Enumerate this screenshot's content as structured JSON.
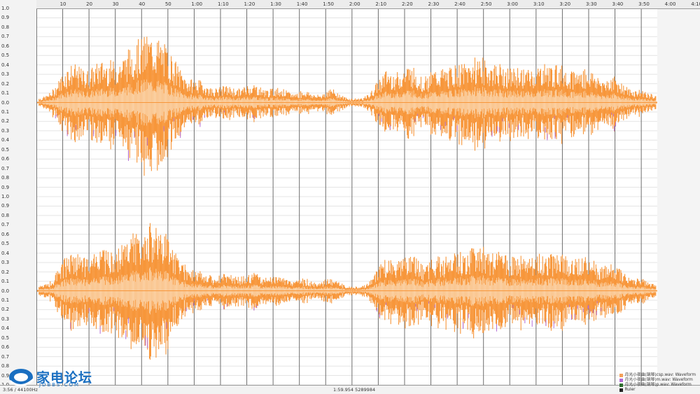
{
  "amplitude_axis": {
    "labels": [
      "1.0",
      "0.9",
      "0.8",
      "0.7",
      "0.6",
      "0.5",
      "0.4",
      "0.3",
      "0.2",
      "0.1",
      "0.0",
      "0.1",
      "0.2",
      "0.3",
      "0.4",
      "0.5",
      "0.6",
      "0.7",
      "0.8",
      "0.9",
      "1.0",
      "0.9",
      "0.8",
      "0.7",
      "0.6",
      "0.5",
      "0.4",
      "0.3",
      "0.2",
      "0.1",
      "0.0",
      "0.1",
      "0.2",
      "0.3",
      "0.4",
      "0.5",
      "0.6",
      "0.7",
      "0.8",
      "0.9",
      "1.0"
    ]
  },
  "time_ruler": {
    "labels": [
      "10",
      "20",
      "30",
      "40",
      "50",
      "1:00",
      "1:10",
      "1:20",
      "1:30",
      "1:40",
      "1:50",
      "2:00",
      "2:10",
      "2:20",
      "2:30",
      "2:40",
      "2:50",
      "3:00",
      "3:10",
      "3:20",
      "3:30",
      "3:40",
      "3:50",
      "4:00",
      "4:10"
    ],
    "seconds": [
      10,
      20,
      30,
      40,
      50,
      60,
      70,
      80,
      90,
      100,
      110,
      120,
      130,
      140,
      150,
      160,
      170,
      180,
      190,
      200,
      210,
      220,
      230,
      240,
      250
    ],
    "end_seconds": 236
  },
  "status": {
    "duration_rate": "3:56 / 44100Hz",
    "cursor": "1:59.954  5289984"
  },
  "legend": [
    {
      "label": "月光小夜曲(钢琴)csp.wav: Waveform",
      "color": "#f4a05a"
    },
    {
      "label": "月光小夜曲(钢琴)m.wav: Waveform",
      "color": "#b36bd6"
    },
    {
      "label": "月光小夜曲(钢琴)p.wav: Waveform",
      "color": "#2d6e2d"
    },
    {
      "label": "Ruler",
      "color": "#222222"
    }
  ],
  "colors": {
    "waveform_fill": "#f7963a",
    "waveform_rms": "#fbd2a6",
    "waveform_alt_peak": "#b36bd6",
    "grid_major": "#6e6e6e",
    "grid_minor": "#e4e4e4"
  },
  "watermark": {
    "text": "家电论坛",
    "sub": "JDBBS.COM"
  }
}
